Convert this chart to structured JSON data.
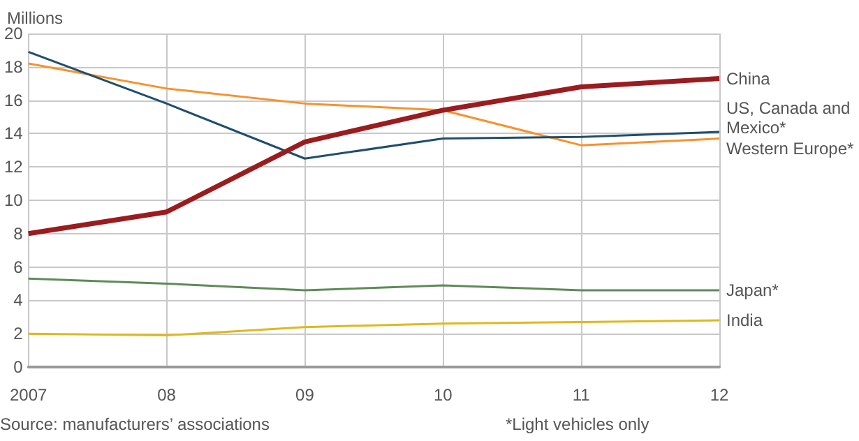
{
  "chart_data": {
    "type": "line",
    "ylabel": "Millions",
    "categories": [
      "2007",
      "08",
      "09",
      "10",
      "11",
      "12"
    ],
    "series": [
      {
        "name": "China",
        "color": "#9b1c1f",
        "values": [
          8.0,
          9.3,
          13.5,
          15.4,
          16.8,
          17.3
        ]
      },
      {
        "name": "US, Canada and Mexico*",
        "color": "#1f4e6e",
        "values": [
          18.9,
          15.8,
          12.5,
          13.7,
          13.8,
          14.1
        ]
      },
      {
        "name": "Western Europe*",
        "color": "#f7922e",
        "values": [
          18.2,
          16.7,
          15.8,
          15.4,
          13.3,
          13.7
        ]
      },
      {
        "name": "Japan*",
        "color": "#5f8a5a",
        "values": [
          5.3,
          5.0,
          4.6,
          4.9,
          4.6,
          4.6
        ]
      },
      {
        "name": "India",
        "color": "#e0b81c",
        "values": [
          2.0,
          1.9,
          2.4,
          2.6,
          2.7,
          2.8
        ]
      }
    ],
    "ylim": [
      0,
      20
    ],
    "yticks": [
      0,
      2,
      4,
      6,
      8,
      10,
      12,
      14,
      16,
      18,
      20
    ],
    "grid": true,
    "marker": "none",
    "line_style": "solid",
    "legend": false,
    "annotations": [
      "Source: manufacturers’ associations",
      "*Light vehicles only"
    ]
  }
}
